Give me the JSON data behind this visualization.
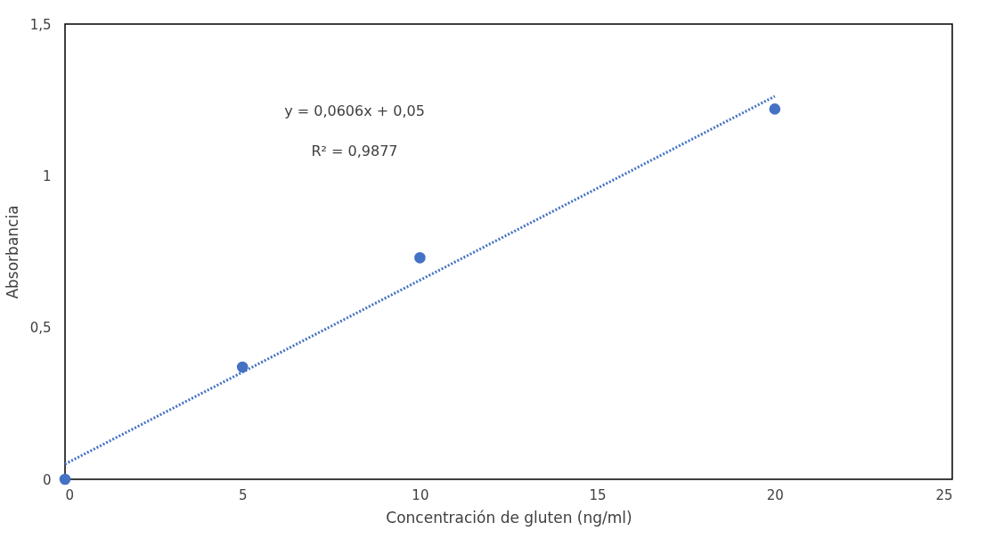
{
  "chart_data": {
    "type": "scatter",
    "xlabel": "Concentración de gluten (ng/ml)",
    "ylabel": "Absorbancia",
    "xlim": [
      0,
      25
    ],
    "xticks": [
      0,
      5,
      10,
      15,
      20,
      25
    ],
    "ylim": [
      0,
      1.5
    ],
    "yticks": [
      0,
      {
        "value": 0.5,
        "label": "0,5"
      },
      1,
      {
        "value": 1.5,
        "label": "1,5"
      }
    ],
    "grid": false,
    "series": [
      {
        "color": "#4472c4",
        "marker": "circle",
        "x": [
          0,
          5,
          10,
          20
        ],
        "values": [
          0,
          0.37,
          0.73,
          1.22
        ]
      },
      {
        "type": "line",
        "color": "#4472c4",
        "line_style": "dotted",
        "marker": "none",
        "x": [
          0,
          20
        ],
        "values": [
          0.05,
          1.262
        ]
      }
    ],
    "annotations": [
      "y = 0,0606x + 0,05",
      "R² = 0,9877"
    ]
  }
}
